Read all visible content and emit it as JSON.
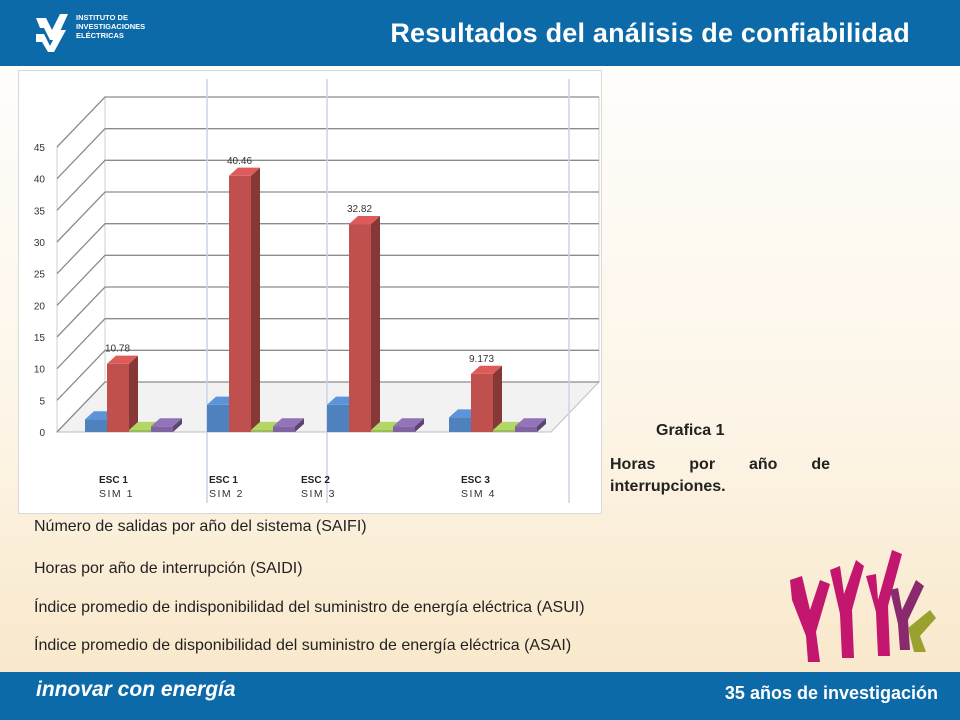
{
  "header": {
    "title": "Resultados del análisis de confiabilidad",
    "logo_text": [
      "INSTITUTO DE",
      "INVESTIGACIONES",
      "ELÉCTRICAS"
    ],
    "bg_color": "#0d6aa8"
  },
  "chart_data": {
    "type": "bar",
    "ylim": [
      0,
      45
    ],
    "y_ticks": [
      "0",
      "5",
      "10",
      "15",
      "20",
      "25",
      "30",
      "35",
      "40",
      "45"
    ],
    "categories": [
      {
        "esc": "ESC 1",
        "sim": "SIM 1"
      },
      {
        "esc": "ESC 1",
        "sim": "SIM 2"
      },
      {
        "esc": "ESC 2",
        "sim": "SIM 3"
      },
      {
        "esc": "ESC 3",
        "sim": "SIM 4"
      }
    ],
    "series": [
      {
        "name": "SAIFI",
        "color": "#4f81bd",
        "values": [
          2.0,
          4.3,
          4.3,
          2.3
        ]
      },
      {
        "name": "SAIDI",
        "color": "#c0504d",
        "values": [
          10.78,
          40.46,
          32.82,
          9.173
        ]
      },
      {
        "name": "ASUI",
        "color": "#9bbb59",
        "values": [
          0.0,
          0.0,
          0.0,
          0.0
        ]
      },
      {
        "name": "ASAI",
        "color": "#8064a2",
        "values": [
          0.9,
          0.9,
          0.9,
          0.9
        ]
      }
    ],
    "data_labels": [
      "10.78",
      "40.46",
      "32.82",
      "9.173"
    ]
  },
  "caption": {
    "title": "Grafica 1",
    "body": "Horas por año de interrupciones."
  },
  "descriptions": [
    "Número de salidas por año del sistema (SAIFI)",
    "Horas por año de interrupción (SAIDI)",
    "Índice promedio de indisponibilidad del suministro de energía eléctrica (ASUI)",
    "Índice promedio de disponibilidad del suministro de energía eléctrica (ASAI)"
  ],
  "footer": {
    "left": "innovar con energía",
    "right": "35 años de investigación"
  }
}
